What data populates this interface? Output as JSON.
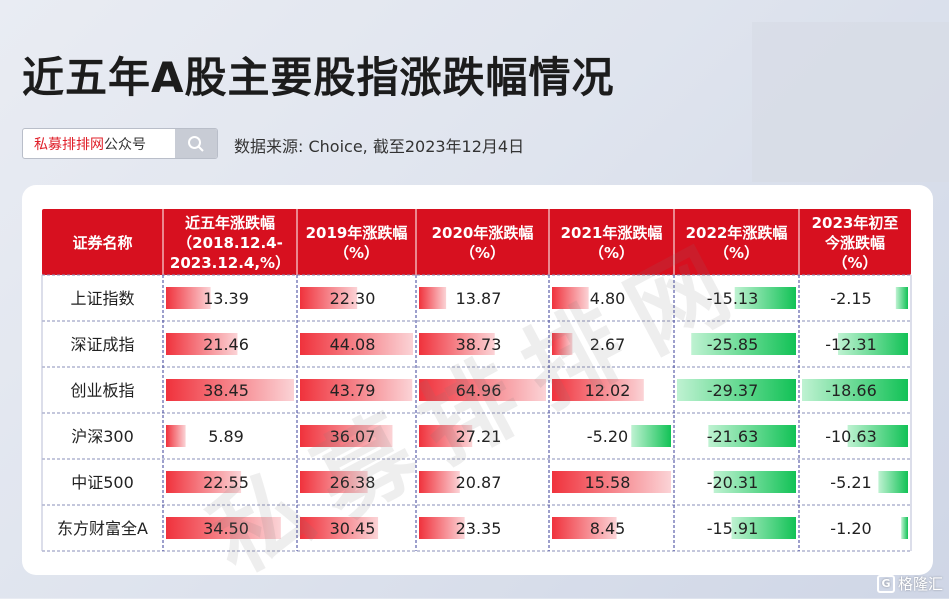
{
  "title": "近五年A股主要股指涨跌幅情况",
  "search": {
    "brand_red": "私募排排网",
    "brand_gray": "公众号"
  },
  "source": "数据来源: Choice, 截至2023年12月4日",
  "watermark": "私募排排网",
  "footer_brand": "格隆汇",
  "colors": {
    "header": "#d7101f",
    "positive": "#f4424c",
    "negative": "#19c35a"
  },
  "chart_data": {
    "type": "table",
    "header_first": "证券名称",
    "columns": [
      [
        "近五年涨跌幅",
        "（2018.12.4-",
        "2023.12.4,%）"
      ],
      [
        "2019年涨跌幅",
        "（%）"
      ],
      [
        "2020年涨跌幅",
        "（%）"
      ],
      [
        "2021年涨跌幅",
        "（%）"
      ],
      [
        "2022年涨跌幅",
        "（%）"
      ],
      [
        "2023年初至",
        "今涨跌幅",
        "（%）"
      ]
    ],
    "rows": [
      {
        "name": "上证指数",
        "values": [
          13.39,
          22.3,
          13.87,
          4.8,
          -15.13,
          -2.15
        ]
      },
      {
        "name": "深证成指",
        "values": [
          21.46,
          44.08,
          38.73,
          2.67,
          -25.85,
          -12.31
        ]
      },
      {
        "name": "创业板指",
        "values": [
          38.45,
          43.79,
          64.96,
          12.02,
          -29.37,
          -18.66
        ]
      },
      {
        "name": "沪深300",
        "values": [
          5.89,
          36.07,
          27.21,
          -5.2,
          -21.63,
          -10.63
        ]
      },
      {
        "name": "中证500",
        "values": [
          22.55,
          26.38,
          20.87,
          15.58,
          -20.31,
          -5.21
        ]
      },
      {
        "name": "东方财富全A",
        "values": [
          34.5,
          30.45,
          23.35,
          8.45,
          -15.91,
          -1.2
        ]
      }
    ]
  }
}
